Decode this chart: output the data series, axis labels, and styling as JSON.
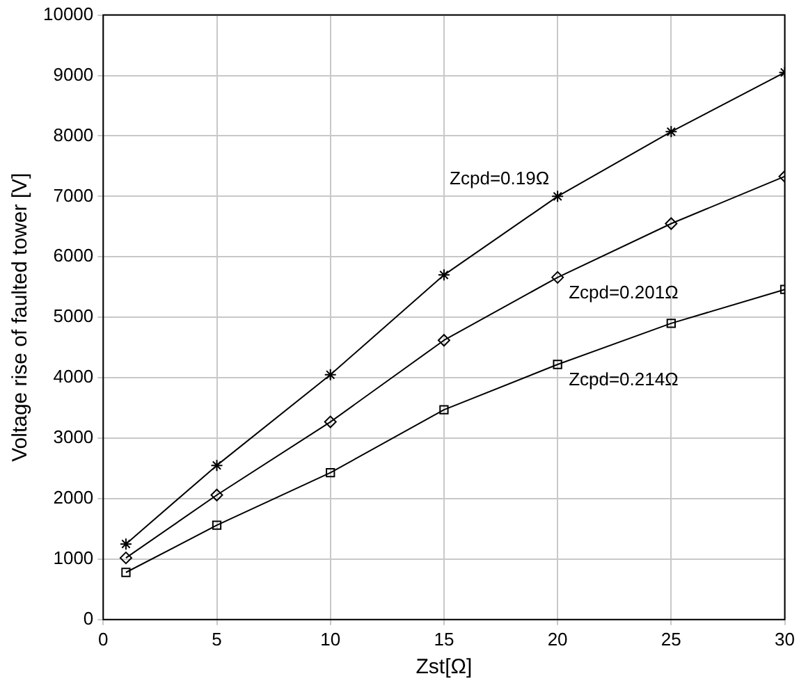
{
  "chart_data": {
    "type": "line",
    "xlabel": "Zst[Ω]",
    "ylabel": "Voltage rise of faulted tower [V]",
    "x": [
      1,
      5,
      10,
      15,
      20,
      25,
      30
    ],
    "series": [
      {
        "name": "Zcpd=0.19Ω",
        "color": "#000000",
        "marker": "cross",
        "values": [
          1250,
          2550,
          4050,
          5700,
          7000,
          8070,
          9050
        ]
      },
      {
        "name": "Zcpd=0.201Ω",
        "color": "#000000",
        "marker": "diamond",
        "values": [
          1020,
          2060,
          3270,
          4620,
          5660,
          6550,
          7330
        ]
      },
      {
        "name": "Zcpd=0.214Ω",
        "color": "#000000",
        "marker": "square",
        "values": [
          780,
          1560,
          2430,
          3470,
          4220,
          4900,
          5460
        ]
      }
    ],
    "xlim": [
      0,
      30
    ],
    "xticks": [
      0,
      5,
      10,
      15,
      20,
      25,
      30
    ],
    "ylim": [
      0,
      10000
    ],
    "yticks": [
      0,
      1000,
      2000,
      3000,
      4000,
      5000,
      6000,
      7000,
      8000,
      9000,
      10000
    ],
    "grid": true,
    "legend": false,
    "line_style": "solid"
  }
}
